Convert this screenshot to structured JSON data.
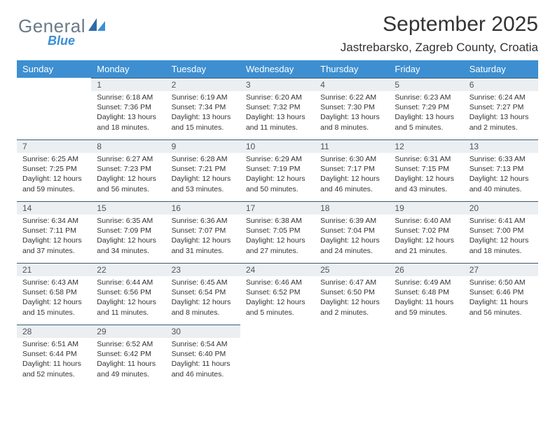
{
  "brand": {
    "name": "General",
    "sub": "Blue"
  },
  "header": {
    "month_title": "September 2025",
    "location": "Jastrebarsko, Zagreb County, Croatia"
  },
  "colors": {
    "header_bg": "#3d8fd1",
    "header_text": "#ffffff",
    "daynum_bg": "#eceff1",
    "daynum_border_top": "#3d5a75",
    "body_text": "#333333",
    "logo_gray": "#6b7a88",
    "logo_blue": "#3a8fd6",
    "bg": "#ffffff"
  },
  "fonts": {
    "title_size_pt": 22,
    "location_size_pt": 13,
    "weekday_size_pt": 10,
    "daynum_size_pt": 9,
    "cell_size_pt": 8
  },
  "weekdays": [
    "Sunday",
    "Monday",
    "Tuesday",
    "Wednesday",
    "Thursday",
    "Friday",
    "Saturday"
  ],
  "layout": {
    "columns": 7,
    "rows": 5,
    "first_weekday_offset": 1
  },
  "days": [
    {
      "n": 1,
      "sunrise": "6:18 AM",
      "sunset": "7:36 PM",
      "daylight": "13 hours and 18 minutes."
    },
    {
      "n": 2,
      "sunrise": "6:19 AM",
      "sunset": "7:34 PM",
      "daylight": "13 hours and 15 minutes."
    },
    {
      "n": 3,
      "sunrise": "6:20 AM",
      "sunset": "7:32 PM",
      "daylight": "13 hours and 11 minutes."
    },
    {
      "n": 4,
      "sunrise": "6:22 AM",
      "sunset": "7:30 PM",
      "daylight": "13 hours and 8 minutes."
    },
    {
      "n": 5,
      "sunrise": "6:23 AM",
      "sunset": "7:29 PM",
      "daylight": "13 hours and 5 minutes."
    },
    {
      "n": 6,
      "sunrise": "6:24 AM",
      "sunset": "7:27 PM",
      "daylight": "13 hours and 2 minutes."
    },
    {
      "n": 7,
      "sunrise": "6:25 AM",
      "sunset": "7:25 PM",
      "daylight": "12 hours and 59 minutes."
    },
    {
      "n": 8,
      "sunrise": "6:27 AM",
      "sunset": "7:23 PM",
      "daylight": "12 hours and 56 minutes."
    },
    {
      "n": 9,
      "sunrise": "6:28 AM",
      "sunset": "7:21 PM",
      "daylight": "12 hours and 53 minutes."
    },
    {
      "n": 10,
      "sunrise": "6:29 AM",
      "sunset": "7:19 PM",
      "daylight": "12 hours and 50 minutes."
    },
    {
      "n": 11,
      "sunrise": "6:30 AM",
      "sunset": "7:17 PM",
      "daylight": "12 hours and 46 minutes."
    },
    {
      "n": 12,
      "sunrise": "6:31 AM",
      "sunset": "7:15 PM",
      "daylight": "12 hours and 43 minutes."
    },
    {
      "n": 13,
      "sunrise": "6:33 AM",
      "sunset": "7:13 PM",
      "daylight": "12 hours and 40 minutes."
    },
    {
      "n": 14,
      "sunrise": "6:34 AM",
      "sunset": "7:11 PM",
      "daylight": "12 hours and 37 minutes."
    },
    {
      "n": 15,
      "sunrise": "6:35 AM",
      "sunset": "7:09 PM",
      "daylight": "12 hours and 34 minutes."
    },
    {
      "n": 16,
      "sunrise": "6:36 AM",
      "sunset": "7:07 PM",
      "daylight": "12 hours and 31 minutes."
    },
    {
      "n": 17,
      "sunrise": "6:38 AM",
      "sunset": "7:05 PM",
      "daylight": "12 hours and 27 minutes."
    },
    {
      "n": 18,
      "sunrise": "6:39 AM",
      "sunset": "7:04 PM",
      "daylight": "12 hours and 24 minutes."
    },
    {
      "n": 19,
      "sunrise": "6:40 AM",
      "sunset": "7:02 PM",
      "daylight": "12 hours and 21 minutes."
    },
    {
      "n": 20,
      "sunrise": "6:41 AM",
      "sunset": "7:00 PM",
      "daylight": "12 hours and 18 minutes."
    },
    {
      "n": 21,
      "sunrise": "6:43 AM",
      "sunset": "6:58 PM",
      "daylight": "12 hours and 15 minutes."
    },
    {
      "n": 22,
      "sunrise": "6:44 AM",
      "sunset": "6:56 PM",
      "daylight": "12 hours and 11 minutes."
    },
    {
      "n": 23,
      "sunrise": "6:45 AM",
      "sunset": "6:54 PM",
      "daylight": "12 hours and 8 minutes."
    },
    {
      "n": 24,
      "sunrise": "6:46 AM",
      "sunset": "6:52 PM",
      "daylight": "12 hours and 5 minutes."
    },
    {
      "n": 25,
      "sunrise": "6:47 AM",
      "sunset": "6:50 PM",
      "daylight": "12 hours and 2 minutes."
    },
    {
      "n": 26,
      "sunrise": "6:49 AM",
      "sunset": "6:48 PM",
      "daylight": "11 hours and 59 minutes."
    },
    {
      "n": 27,
      "sunrise": "6:50 AM",
      "sunset": "6:46 PM",
      "daylight": "11 hours and 56 minutes."
    },
    {
      "n": 28,
      "sunrise": "6:51 AM",
      "sunset": "6:44 PM",
      "daylight": "11 hours and 52 minutes."
    },
    {
      "n": 29,
      "sunrise": "6:52 AM",
      "sunset": "6:42 PM",
      "daylight": "11 hours and 49 minutes."
    },
    {
      "n": 30,
      "sunrise": "6:54 AM",
      "sunset": "6:40 PM",
      "daylight": "11 hours and 46 minutes."
    }
  ],
  "labels": {
    "sunrise": "Sunrise:",
    "sunset": "Sunset:",
    "daylight": "Daylight:"
  }
}
